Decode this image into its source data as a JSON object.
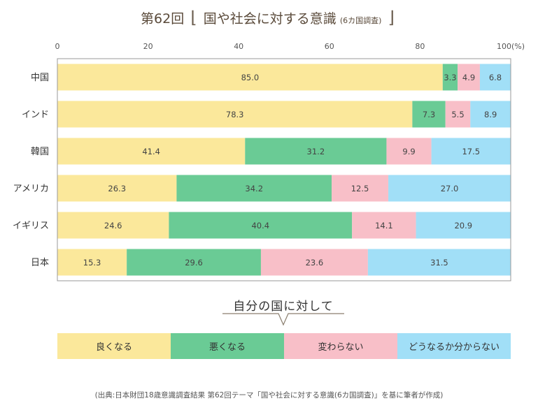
{
  "title": {
    "main": "第62回",
    "open_bracket": "⌊",
    "topic": "国や社会に対する意識",
    "sub": "(6カ国調査)",
    "close_bracket": "⌋"
  },
  "chart_data": {
    "type": "bar",
    "orientation": "horizontal",
    "stacked": true,
    "xlim": [
      0,
      100
    ],
    "x_ticks": [
      "0",
      "20",
      "40",
      "60",
      "80",
      "100(%)"
    ],
    "categories": [
      "中国",
      "インド",
      "韓国",
      "アメリカ",
      "イギリス",
      "日本"
    ],
    "series": [
      {
        "name": "良くなる",
        "color": "#fbe89b",
        "values": [
          85.0,
          78.3,
          41.4,
          26.3,
          24.6,
          15.3
        ],
        "labels": [
          "85.0",
          "78.3",
          "41.4",
          "26.3",
          "24.6",
          "15.3"
        ]
      },
      {
        "name": "悪くなる",
        "color": "#6acb95",
        "values": [
          3.3,
          7.3,
          31.2,
          34.2,
          40.4,
          29.6
        ],
        "labels": [
          "3.3",
          "7.3",
          "31.2",
          "34.2",
          "40.4",
          "29.6"
        ]
      },
      {
        "name": "変わらない",
        "color": "#f8bfc8",
        "values": [
          4.9,
          5.5,
          9.9,
          12.5,
          14.1,
          23.6
        ],
        "labels": [
          "4.9",
          "5.5",
          "9.9",
          "12.5",
          "14.1",
          "23.6"
        ]
      },
      {
        "name": "どうなるか分からない",
        "color": "#a1dff7",
        "values": [
          6.8,
          8.9,
          17.5,
          27.0,
          20.9,
          31.5
        ],
        "labels": [
          "6.8",
          "8.9",
          "17.5",
          "27.0",
          "20.9",
          "31.5"
        ]
      }
    ],
    "legend_title": "自分の国に対して",
    "legend_position": "bottom",
    "grid": false
  },
  "legend": {
    "title": "自分の国に対して",
    "items": [
      "良くなる",
      "悪くなる",
      "変わらない",
      "どうなるか分からない"
    ]
  },
  "source": "(出典:日本財団18歳意識調査結果 第62回テーマ「国や社会に対する意識(6カ国調査)」を基に筆者が作成)"
}
